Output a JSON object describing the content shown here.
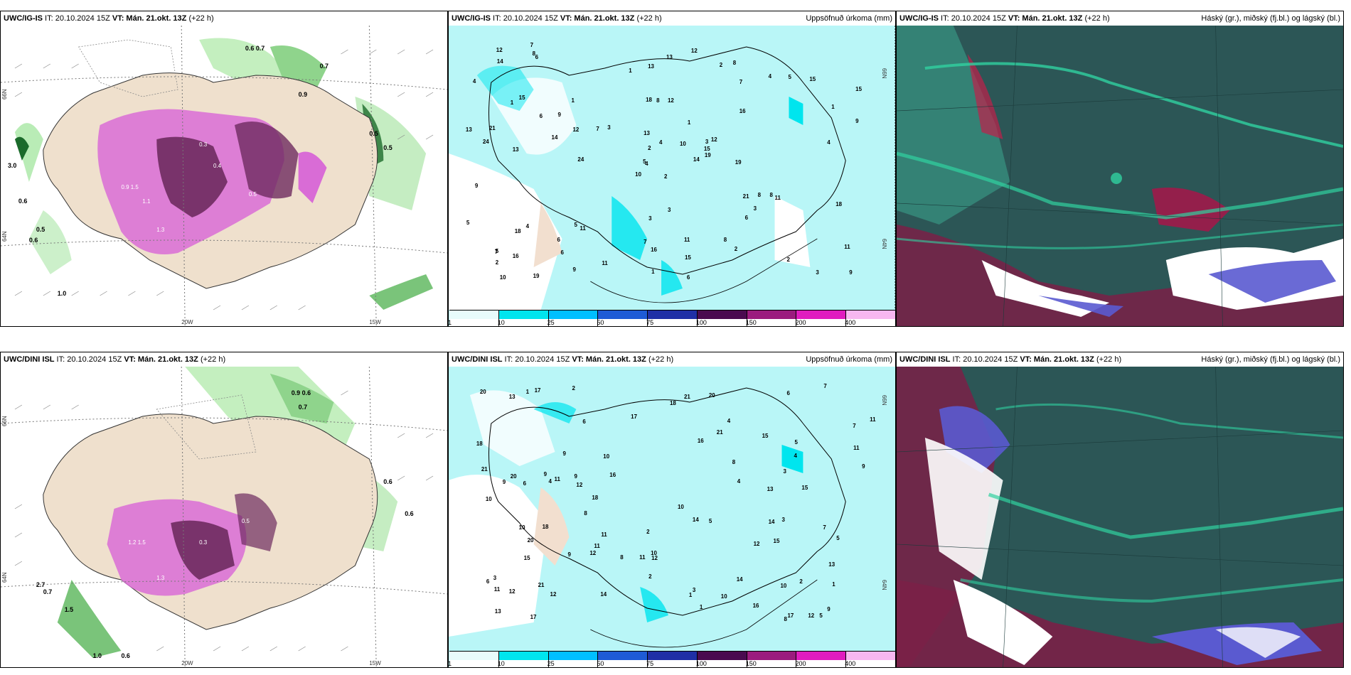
{
  "top_left": {
    "title_model": "UWC/IG-IS",
    "title_it": " IT: 20.10.2024 15Z ",
    "title_vt": "VT: Mán. 21.okt. 13Z",
    "title_lead": " (+22 h)",
    "lat_labels": [
      "66N",
      "64N",
      "63N"
    ],
    "lon_labels": [
      "20W",
      "15W"
    ]
  },
  "top_middle": {
    "title_model": "UWC/IG-IS",
    "title_it": " IT: 20.10.2024 15Z ",
    "title_vt": "VT: Mán. 21.okt. 13Z",
    "title_lead": " (+22 h)",
    "right_label": "Uppsöfnuð úrkoma (mm)"
  },
  "top_right": {
    "title_model": "UWC/IG-IS",
    "title_it": " IT: 20.10.2024 15Z ",
    "title_vt": "VT: Mán. 21.okt. 13Z",
    "title_lead": " (+22 h)",
    "right_label": "Háský (gr.), miðský (fj.bl.) og lágský (bl.)"
  },
  "bottom_left": {
    "title_model": "UWC/DINI ISL",
    "title_it": " IT: 20.10.2024 15Z ",
    "title_vt": "VT: Mán. 21.okt. 13Z",
    "title_lead": " (+22 h)",
    "lat_labels": [
      "66N",
      "64N",
      "63N"
    ],
    "lon_labels": [
      "20W",
      "15W"
    ]
  },
  "bottom_middle": {
    "title_model": "UWC/DINI ISL",
    "title_it": " IT: 20.10.2024 15Z ",
    "title_vt": "VT: Mán. 21.okt. 13Z",
    "title_lead": " (+22 h)",
    "right_label": "Uppsöfnuð úrkoma (mm)"
  },
  "bottom_right": {
    "title_model": "UWC/DINI ISL",
    "title_it": " IT: 20.10.2024 15Z ",
    "title_vt": "VT: Mán. 21.okt. 13Z",
    "title_lead": " (+22 h)",
    "right_label": "Háský (gr.), miðský (fj.bl.) og lágský (bl.)"
  },
  "precip_legend": {
    "labels": [
      "1",
      "10",
      "25",
      "50",
      "75",
      "100",
      "150",
      "200",
      "400"
    ],
    "colors": [
      "#e8fbfb",
      "#00e5ee",
      "#00bfff",
      "#1e5bd6",
      "#1f2fa6",
      "#4a0a4f",
      "#9b1b7e",
      "#e01cbf",
      "#f7b7f0"
    ]
  },
  "precip_values_top": [
    "2",
    "1",
    "4",
    "5",
    "3",
    "11",
    "8",
    "12",
    "7",
    "14",
    "6",
    "9",
    "13",
    "15",
    "10",
    "16",
    "19",
    "18",
    "1",
    "4",
    "3",
    "2",
    "6",
    "8",
    "12",
    "11",
    "15",
    "13",
    "24",
    "21",
    "9",
    "5",
    "7"
  ],
  "precip_values_bottom": [
    "2",
    "4",
    "1",
    "3",
    "5",
    "6",
    "11",
    "8",
    "12",
    "13",
    "15",
    "21",
    "20",
    "17",
    "18",
    "14",
    "10",
    "9",
    "7",
    "16",
    "12",
    "11",
    "10",
    "9"
  ],
  "wind_values_top": [
    "0.7",
    "0.6",
    "0.5",
    "0.3",
    "1.1",
    "0.8",
    "0.4",
    "0.9",
    "1.9",
    "1.2",
    "1.3",
    "0.5",
    "3.0",
    "1.1",
    "0.6",
    "0.5"
  ],
  "wind_values_bottom": [
    "0.7",
    "0.6",
    "0.9",
    "0.5",
    "0.8",
    "0.4",
    "0.3",
    "1.2",
    "1.0",
    "0.6",
    "1.5",
    "0.7",
    "2.7",
    "0.6",
    "1.3"
  ]
}
